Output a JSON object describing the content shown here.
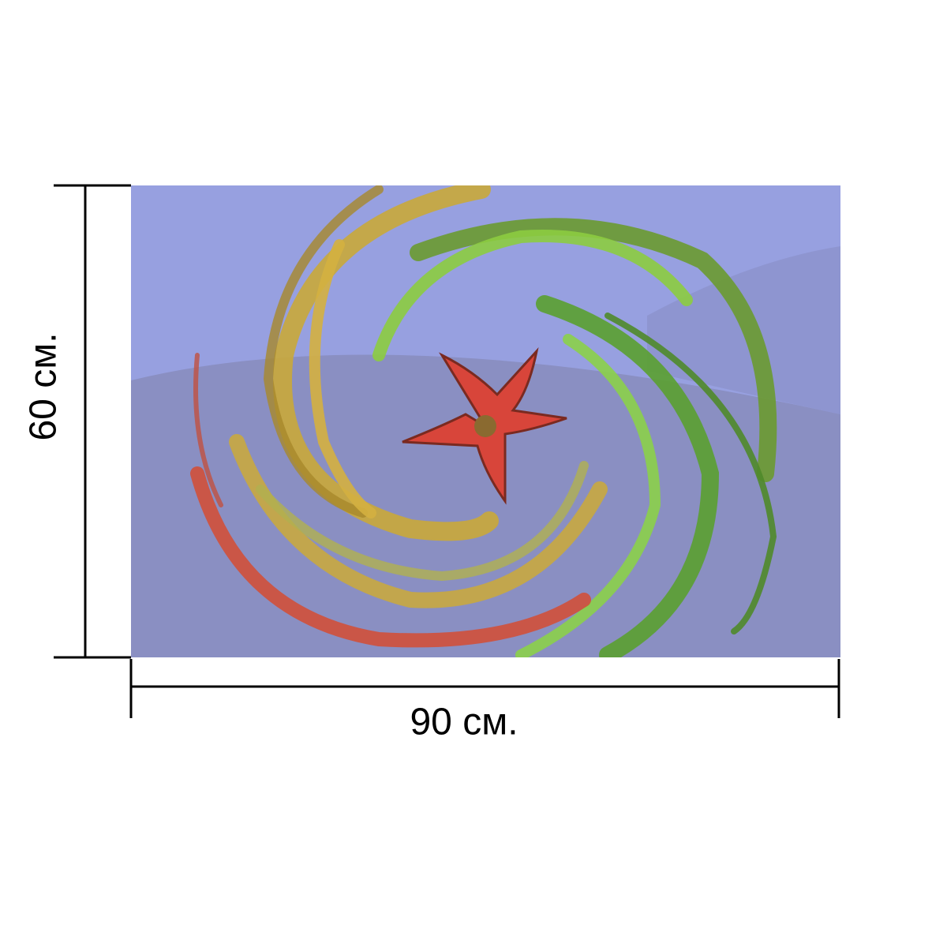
{
  "labels": {
    "height": "60 см.",
    "width": "90 см."
  }
}
